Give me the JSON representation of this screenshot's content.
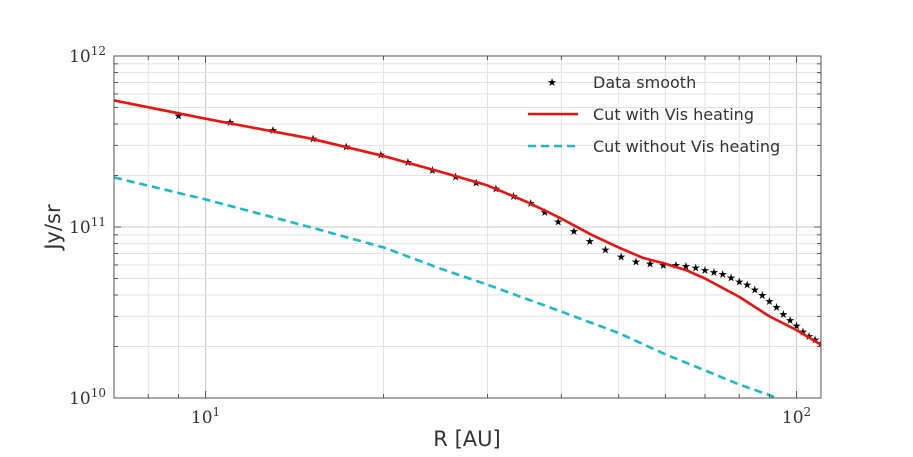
{
  "chart_data": {
    "type": "line",
    "xlabel": "R [AU]",
    "ylabel": "Jy/sr",
    "x_scale": "log",
    "y_scale": "log",
    "xlim": [
      7.0,
      110
    ],
    "ylim": [
      10000000000.0,
      1000000000000.0
    ],
    "grid": true,
    "legend_position": "top-right",
    "x_ticks": [
      {
        "value": 10,
        "label": "10",
        "exp": "1"
      },
      {
        "value": 100,
        "label": "10",
        "exp": "2"
      }
    ],
    "y_ticks": [
      {
        "value": 10000000000.0,
        "label": "10",
        "exp": "10"
      },
      {
        "value": 100000000000.0,
        "label": "10",
        "exp": "11"
      },
      {
        "value": 1000000000000.0,
        "label": "10",
        "exp": "12"
      }
    ],
    "series": [
      {
        "name": "Data smooth",
        "style": "stars",
        "color": "#000000",
        "x": [
          9.0,
          11.0,
          13.0,
          15.2,
          17.3,
          19.8,
          22.0,
          24.2,
          26.5,
          28.7,
          31.0,
          33.2,
          35.5,
          37.5,
          39.5,
          42.0,
          44.7,
          47.5,
          50.5,
          53.5,
          56.5,
          59.5,
          62.5,
          65.0,
          67.5,
          70.0,
          72.5,
          75.0,
          77.5,
          80.0,
          82.5,
          85.0,
          87.5,
          90.0,
          92.5,
          95.0,
          97.5,
          100.0,
          102.5,
          105.0,
          107.5,
          110.0
        ],
        "y": [
          450000000000.0,
          410000000000.0,
          370000000000.0,
          330000000000.0,
          295000000000.0,
          265000000000.0,
          240000000000.0,
          215000000000.0,
          198000000000.0,
          182000000000.0,
          168000000000.0,
          152000000000.0,
          138000000000.0,
          122000000000.0,
          108000000000.0,
          95000000000.0,
          83000000000.0,
          74000000000.0,
          67000000000.0,
          63000000000.0,
          61000000000.0,
          60000000000.0,
          60000000000.0,
          59000000000.0,
          58000000000.0,
          56000000000.0,
          54500000000.0,
          53000000000.0,
          50500000000.0,
          48000000000.0,
          46000000000.0,
          43000000000.0,
          40000000000.0,
          37000000000.0,
          34000000000.0,
          31000000000.0,
          28500000000.0,
          26500000000.0,
          24500000000.0,
          23000000000.0,
          22000000000.0,
          21000000000.0
        ]
      },
      {
        "name": "Cut with Vis heating",
        "style": "solid",
        "color": "#ee1111",
        "x": [
          7.0,
          10,
          15,
          20,
          25,
          30,
          35,
          40,
          45,
          50,
          55,
          60,
          65,
          70,
          80,
          90,
          100,
          110
        ],
        "y": [
          550000000000.0,
          430000000000.0,
          330000000000.0,
          260000000000.0,
          210000000000.0,
          175000000000.0,
          140000000000.0,
          112000000000.0,
          90000000000.0,
          76000000000.0,
          66000000000.0,
          61000000000.0,
          56000000000.0,
          50000000000.0,
          39000000000.0,
          30000000000.0,
          25000000000.0,
          20500000000.0
        ]
      },
      {
        "name": "Cut without Vis heating",
        "style": "dashed",
        "color": "#17bcc4",
        "x": [
          7.0,
          10,
          15,
          20,
          25,
          30,
          40,
          50,
          60,
          70,
          80,
          90,
          100
        ],
        "y": [
          195000000000.0,
          145000000000.0,
          100000000000.0,
          76000000000.0,
          57000000000.0,
          46000000000.0,
          32000000000.0,
          24000000000.0,
          18000000000.0,
          14500000000.0,
          12000000000.0,
          10400000000.0,
          9000000000.0
        ]
      }
    ]
  }
}
